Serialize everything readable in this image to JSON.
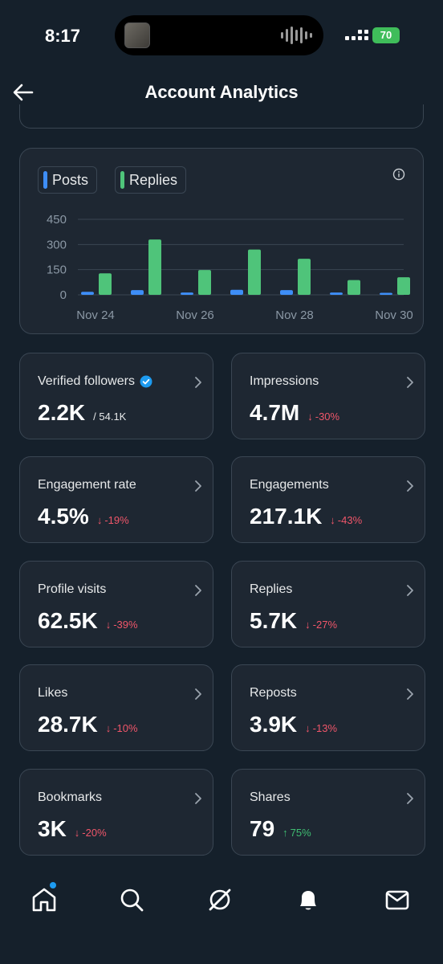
{
  "status_bar": {
    "time": "8:17",
    "battery": "70"
  },
  "header": {
    "title": "Account Analytics"
  },
  "chart": {
    "legend": [
      {
        "label": "Posts",
        "color": "#3e8ef7"
      },
      {
        "label": "Replies",
        "color": "#4fc47a"
      }
    ]
  },
  "chart_data": {
    "type": "bar",
    "categories": [
      "Nov 24",
      "Nov 25",
      "Nov 26",
      "Nov 27",
      "Nov 28",
      "Nov 29",
      "Nov 30"
    ],
    "x_tick_labels": [
      "Nov 24",
      "Nov 26",
      "Nov 28",
      "Nov 30"
    ],
    "y_ticks": [
      "450",
      "300",
      "150",
      "0"
    ],
    "ylim": [
      0,
      450
    ],
    "series": [
      {
        "name": "Posts",
        "color": "#3e8ef7",
        "values": [
          18,
          28,
          14,
          30,
          28,
          14,
          12
        ]
      },
      {
        "name": "Replies",
        "color": "#4fc47a",
        "values": [
          128,
          330,
          148,
          270,
          215,
          88,
          105
        ]
      }
    ],
    "legend": "top-left",
    "grid": true
  },
  "stats": [
    {
      "label": "Verified followers",
      "value": "2.2K",
      "sub": "/ 54.1K",
      "delta": "",
      "direction": "",
      "verified": true
    },
    {
      "label": "Impressions",
      "value": "4.7M",
      "sub": "",
      "delta": "-30%",
      "direction": "down"
    },
    {
      "label": "Engagement rate",
      "value": "4.5%",
      "sub": "",
      "delta": "-19%",
      "direction": "down"
    },
    {
      "label": "Engagements",
      "value": "217.1K",
      "sub": "",
      "delta": "-43%",
      "direction": "down"
    },
    {
      "label": "Profile visits",
      "value": "62.5K",
      "sub": "",
      "delta": "-39%",
      "direction": "down"
    },
    {
      "label": "Replies",
      "value": "5.7K",
      "sub": "",
      "delta": "-27%",
      "direction": "down"
    },
    {
      "label": "Likes",
      "value": "28.7K",
      "sub": "",
      "delta": "-10%",
      "direction": "down"
    },
    {
      "label": "Reposts",
      "value": "3.9K",
      "sub": "",
      "delta": "-13%",
      "direction": "down"
    },
    {
      "label": "Bookmarks",
      "value": "3K",
      "sub": "",
      "delta": "-20%",
      "direction": "down"
    },
    {
      "label": "Shares",
      "value": "79",
      "sub": "",
      "delta": "75%",
      "direction": "up"
    }
  ],
  "tabbar": {
    "items": [
      {
        "icon": "home-icon",
        "active": true
      },
      {
        "icon": "search-icon"
      },
      {
        "icon": "grok-icon"
      },
      {
        "icon": "notifications-icon"
      },
      {
        "icon": "messages-icon"
      }
    ]
  }
}
